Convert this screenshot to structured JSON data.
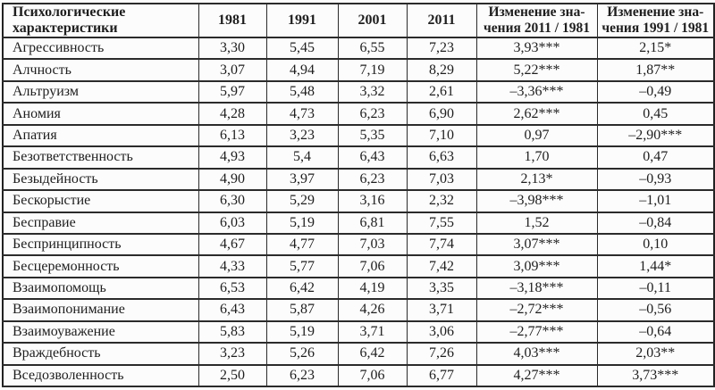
{
  "page": {
    "background": "#fcfcfc",
    "text_color": "#1e1e1e",
    "border_color": "#2b2b2b"
  },
  "table": {
    "header": {
      "characteristics": {
        "lines": [
          "Психологические",
          "характеристики"
        ]
      },
      "years": [
        "1981",
        "1991",
        "2001",
        "2011"
      ],
      "change_2011_1981": {
        "lines": [
          "Изменение зна-",
          "чения 2011 / 1981"
        ]
      },
      "change_1991_1981": {
        "lines": [
          "Изменение зна-",
          "чения 1991 / 1981"
        ]
      }
    },
    "rows": [
      {
        "cells": [
          "Агрессивность",
          "3,30",
          "5,45",
          "6,55",
          "7,23",
          "3,93***",
          "2,15*"
        ]
      },
      {
        "cells": [
          "Алчность",
          "3,07",
          "4,94",
          "7,19",
          "8,29",
          "5,22***",
          "1,87**"
        ]
      },
      {
        "cells": [
          "Альтруизм",
          "5,97",
          "5,48",
          "3,32",
          "2,61",
          "–3,36***",
          "–0,49"
        ]
      },
      {
        "cells": [
          "Аномия",
          "4,28",
          "4,73",
          "6,23",
          "6,90",
          "2,62***",
          "0,45"
        ]
      },
      {
        "cells": [
          "Апатия",
          "6,13",
          "3,23",
          "5,35",
          "7,10",
          "0,97",
          "–2,90***"
        ]
      },
      {
        "cells": [
          "Безответственность",
          "4,93",
          "5,4",
          "6,43",
          "6,63",
          "1,70",
          "0,47"
        ]
      },
      {
        "cells": [
          "Безыдейность",
          "4,90",
          "3,97",
          "6,23",
          "7,03",
          "2,13*",
          "–0,93"
        ]
      },
      {
        "cells": [
          "Бескорыстие",
          "6,30",
          "5,29",
          "3,16",
          "2,32",
          "–3,98***",
          "–1,01"
        ]
      },
      {
        "cells": [
          "Бесправие",
          "6,03",
          "5,19",
          "6,81",
          "7,55",
          "1,52",
          "–0,84"
        ]
      },
      {
        "cells": [
          "Беспринципность",
          "4,67",
          "4,77",
          "7,03",
          "7,74",
          "3,07***",
          "0,10"
        ]
      },
      {
        "cells": [
          "Бесцеремонность",
          "4,33",
          "5,77",
          "7,06",
          "7,42",
          "3,09***",
          "1,44*"
        ]
      },
      {
        "cells": [
          "Взаимопомощь",
          "6,53",
          "6,42",
          "4,19",
          "3,35",
          "–3,18***",
          "–0,11"
        ]
      },
      {
        "cells": [
          "Взаимопонимание",
          "6,43",
          "5,87",
          "4,26",
          "3,71",
          "–2,72***",
          "–0,56"
        ]
      },
      {
        "cells": [
          "Взаимоуважение",
          "5,83",
          "5,19",
          "3,71",
          "3,06",
          "–2,77***",
          "–0,64"
        ]
      },
      {
        "cells": [
          "Враждебность",
          "3,23",
          "5,26",
          "6,42",
          "7,26",
          "4,03***",
          "2,03**"
        ]
      },
      {
        "cells": [
          "Вседозволенность",
          "2,50",
          "6,23",
          "7,06",
          "6,77",
          "4,27***",
          "3,73***"
        ]
      }
    ]
  }
}
